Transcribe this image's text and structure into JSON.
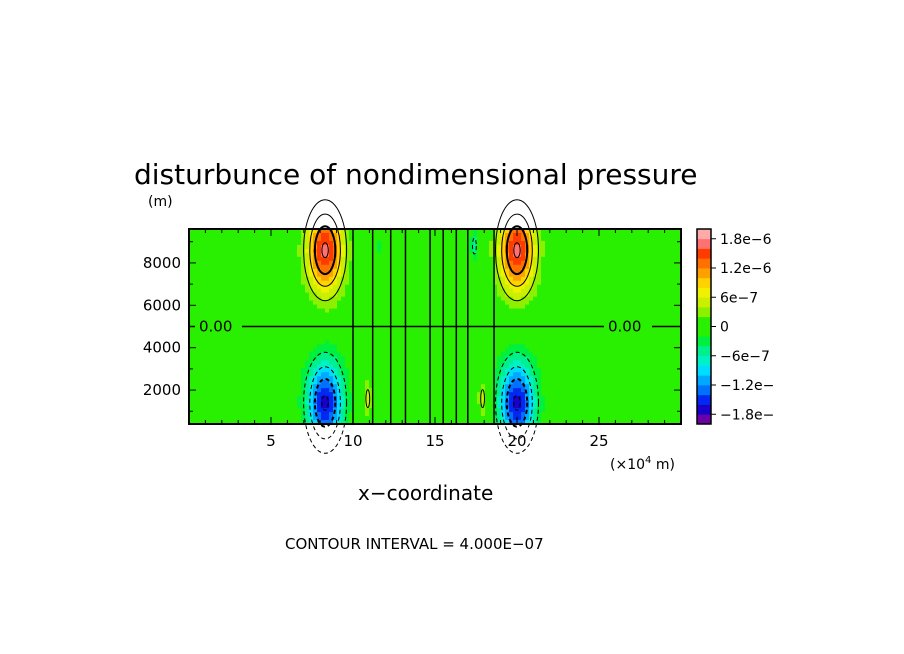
{
  "chart_data": {
    "type": "contour",
    "title": "disturbunce of nondimensional pressure",
    "y_unit": "(m)",
    "xlabel": "x−coordinate",
    "x_unit_prefix": "(×10",
    "x_unit_exp": "4",
    "x_unit_suffix": " m)",
    "xlim": [
      0,
      30
    ],
    "ylim": [
      400,
      9600
    ],
    "x_ticks": [
      5,
      10,
      15,
      20,
      25
    ],
    "x_tick_labels": [
      "5",
      "10",
      "15",
      "20",
      "25"
    ],
    "y_ticks": [
      2000,
      4000,
      6000,
      8000
    ],
    "y_tick_labels": [
      "2000",
      "4000",
      "6000",
      "8000"
    ],
    "contour_interval": 4e-07,
    "contour_note": "CONTOUR INTERVAL = 4.000E−07",
    "zero_line_y": 5000,
    "zero_line_labels": [
      "0.00",
      "0.00"
    ],
    "lobes": [
      {
        "x": 8.3,
        "y": 8600,
        "sx": 1.1,
        "sy": 2000,
        "amp": 1.65e-06
      },
      {
        "x": 20.0,
        "y": 8600,
        "sx": 1.1,
        "sy": 2000,
        "amp": 1.65e-06
      },
      {
        "x": 8.3,
        "y": 1400,
        "sx": 1.1,
        "sy": 2000,
        "amp": -1.65e-06
      },
      {
        "x": 20.0,
        "y": 1400,
        "sx": 1.1,
        "sy": 2000,
        "amp": -1.65e-06
      },
      {
        "x": 10.9,
        "y": 1600,
        "sx": 0.25,
        "sy": 900,
        "amp": 5e-07
      },
      {
        "x": 17.9,
        "y": 1600,
        "sx": 0.25,
        "sy": 900,
        "amp": 5e-07
      },
      {
        "x": 17.4,
        "y": 8800,
        "sx": 0.25,
        "sy": 800,
        "amp": -5e-07
      },
      {
        "x": 11.5,
        "y": 8800,
        "sx": 0.2,
        "sy": 700,
        "amp": -3e-07
      }
    ],
    "vertical_contour_x": [
      10.0,
      11.2,
      12.3,
      13.2,
      14.7,
      15.5,
      16.3,
      17.0,
      18.6
    ],
    "colorbar": {
      "levels": [
        -2e-06,
        -1.8e-06,
        -1.6e-06,
        -1.4e-06,
        -1.2e-06,
        -1e-06,
        -8e-07,
        -6e-07,
        -4e-07,
        -2e-07,
        0,
        2e-07,
        4e-07,
        6e-07,
        8e-07,
        1e-06,
        1.2e-06,
        1.4e-06,
        1.6e-06,
        1.8e-06,
        2e-06
      ],
      "colors": [
        "#6a00a8",
        "#1800c8",
        "#0028f0",
        "#0070ff",
        "#00a8ff",
        "#00dcff",
        "#00f0c8",
        "#00f090",
        "#00f040",
        "#28f000",
        "#28f000",
        "#8cf000",
        "#c8f000",
        "#f0f000",
        "#ffd200",
        "#ffa000",
        "#ff7000",
        "#ff3c00",
        "#ff7070",
        "#ffaaaa"
      ],
      "tick_values": [
        1.8e-06,
        1.2e-06,
        6e-07,
        0,
        -6e-07,
        -1.2e-06,
        -1.8e-06
      ],
      "tick_labels": [
        "1.8e−6",
        "1.2e−6",
        "6e−7",
        "0",
        "−6e−7",
        "−1.2e−",
        "−1.8e−"
      ]
    }
  }
}
